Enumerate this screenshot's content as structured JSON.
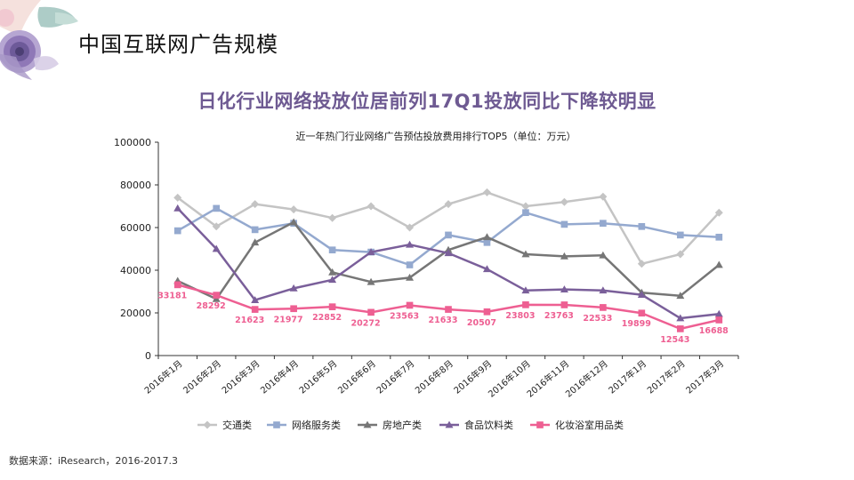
{
  "slide": {
    "title": "中国互联网广告规模",
    "headline": "日化行业网络投放位居前列17Q1投放同比下降较明显",
    "source": "数据来源：iResearch，2016-2017.3"
  },
  "colors": {
    "headline": "#6e5a92",
    "axis": "#333333"
  },
  "chart_data": {
    "type": "line",
    "title": "近一年热门行业网络广告预估投放费用排行TOP5（单位：万元）",
    "categories": [
      "2016年1月",
      "2016年2月",
      "2016年3月",
      "2016年4月",
      "2016年5月",
      "2016年6月",
      "2016年7月",
      "2016年8月",
      "2016年9月",
      "2016年10月",
      "2016年11月",
      "2016年12月",
      "2017年1月",
      "2017年2月",
      "2017年3月"
    ],
    "ylim": [
      0,
      100000
    ],
    "yticks": [
      "0",
      "20000",
      "40000",
      "60000",
      "80000",
      "100000"
    ],
    "legend_position": "bottom",
    "series": [
      {
        "name": "交通类",
        "color": "#c4c4c4",
        "marker": "diamond",
        "values": [
          74000,
          60500,
          71000,
          68500,
          64500,
          70000,
          60000,
          71000,
          76500,
          70000,
          72000,
          74500,
          43000,
          47500,
          67000
        ]
      },
      {
        "name": "网络服务类",
        "color": "#94a9cf",
        "marker": "square",
        "values": [
          58500,
          69000,
          59000,
          62000,
          49500,
          48500,
          42500,
          56500,
          53000,
          67000,
          61500,
          62000,
          60500,
          56500,
          55500
        ]
      },
      {
        "name": "房地产类",
        "color": "#767676",
        "marker": "triangle",
        "values": [
          35000,
          26500,
          53000,
          62500,
          39000,
          34500,
          36500,
          49500,
          55500,
          47500,
          46500,
          47000,
          29500,
          28000,
          42500
        ]
      },
      {
        "name": "食品饮料类",
        "color": "#7a5f9a",
        "marker": "triangle",
        "values": [
          69000,
          50000,
          26000,
          31500,
          35500,
          48500,
          52000,
          48000,
          40500,
          30500,
          31000,
          30500,
          28500,
          17500,
          19500
        ]
      },
      {
        "name": "化妆浴室用品类",
        "color": "#ee5f92",
        "marker": "square",
        "values": [
          33181,
          28292,
          21623,
          21977,
          22852,
          20272,
          23563,
          21633,
          20507,
          23803,
          23763,
          22533,
          19899,
          12543,
          16688
        ],
        "labels": [
          "33181",
          "28292",
          "21623",
          "21977",
          "22852",
          "20272",
          "23563",
          "21633",
          "20507",
          "23803",
          "23763",
          "22533",
          "19899",
          "12543",
          "16688"
        ]
      }
    ]
  }
}
